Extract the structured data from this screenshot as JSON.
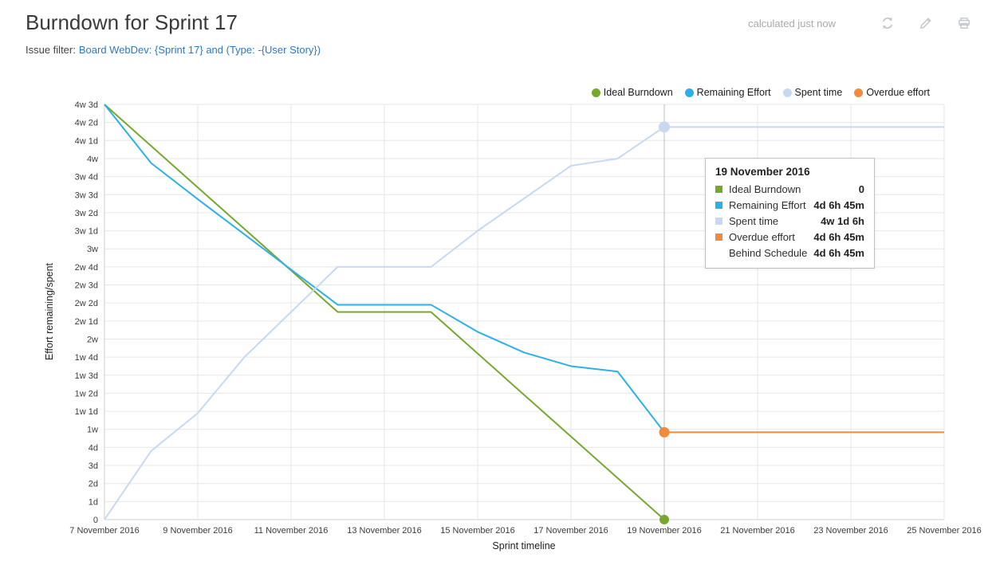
{
  "header": {
    "title": "Burndown for Sprint 17",
    "filter_label": "Issue filter:",
    "filter_value": "Board WebDev: {Sprint 17} and (Type: -{User Story})",
    "calculated": "calculated just now",
    "icons": [
      "refresh-icon",
      "edit-icon",
      "print-icon"
    ]
  },
  "axes": {
    "y_label": "Effort remaining/spent",
    "x_label": "Sprint timeline"
  },
  "legend": [
    {
      "label": "Ideal Burndown",
      "color": "#77a82e"
    },
    {
      "label": "Remaining Effort",
      "color": "#2bb1e8"
    },
    {
      "label": "Spent time",
      "color": "#c6d9f1"
    },
    {
      "label": "Overdue effort",
      "color": "#f08a3d"
    }
  ],
  "chart_data": {
    "type": "line",
    "x": [
      "7 November 2016",
      "8 November 2016",
      "9 November 2016",
      "10 November 2016",
      "11 November 2016",
      "12 November 2016",
      "13 November 2016",
      "14 November 2016",
      "15 November 2016",
      "16 November 2016",
      "17 November 2016",
      "18 November 2016",
      "19 November 2016",
      "20 November 2016",
      "21 November 2016",
      "22 November 2016",
      "23 November 2016",
      "24 November 2016",
      "25 November 2016"
    ],
    "x_tick_every": 2,
    "xlabel": "Sprint timeline",
    "ylabel": "Effort remaining/spent",
    "y_unit": "days",
    "y_max": 23,
    "y_tick_labels": [
      "0",
      "1d",
      "2d",
      "3d",
      "4d",
      "1w",
      "1w 1d",
      "1w 2d",
      "1w 3d",
      "1w 4d",
      "2w",
      "2w 1d",
      "2w 2d",
      "2w 3d",
      "2w 4d",
      "3w",
      "3w 1d",
      "3w 2d",
      "3w 3d",
      "3w 4d",
      "4w",
      "4w 1d",
      "4w 2d",
      "4w 3d"
    ],
    "grid": true,
    "legend_position": "top-right",
    "series": [
      {
        "name": "Ideal Burndown",
        "color": "#77a82e",
        "start_index": 0,
        "values": [
          23,
          20.7,
          18.4,
          16.1,
          13.8,
          11.5,
          11.5,
          11.5,
          9.2,
          6.9,
          4.6,
          2.3,
          0
        ]
      },
      {
        "name": "Remaining Effort",
        "color": "#2bb1e8",
        "start_index": 0,
        "values": [
          23,
          19.75,
          17.75,
          15.8,
          13.85,
          11.9,
          11.9,
          11.9,
          10.4,
          9.25,
          8.5,
          8.2,
          4.84
        ]
      },
      {
        "name": "Spent time",
        "color": "#c6d9f1",
        "start_index": 0,
        "values": [
          0,
          3.8,
          5.9,
          9,
          11.5,
          14,
          14,
          14,
          16,
          17.8,
          19.6,
          20,
          21.75,
          21.75,
          21.75,
          21.75,
          21.75,
          21.75,
          21.75
        ]
      },
      {
        "name": "Overdue effort",
        "color": "#f08a3d",
        "start_index": 12,
        "values": [
          4.84,
          4.84,
          4.84,
          4.84,
          4.84,
          4.84,
          4.84
        ]
      }
    ],
    "hover": {
      "index": 12,
      "date": "19 November 2016",
      "markers": [
        {
          "series": "Remaining Effort",
          "value": 4.84,
          "r": 5.5,
          "color": "#2bb1e8"
        },
        {
          "series": "Ideal Burndown",
          "value": 0,
          "r": 6,
          "color": "#77a82e"
        },
        {
          "series": "Spent time",
          "value": 21.75,
          "r": 7,
          "color": "#c6d9f1"
        },
        {
          "series": "Overdue effort",
          "value": 4.84,
          "r": 6.5,
          "color": "#f08a3d"
        }
      ]
    }
  },
  "tooltip": {
    "date": "19 November 2016",
    "rows": [
      {
        "label": "Ideal Burndown",
        "value": "0",
        "color": "#77a82e"
      },
      {
        "label": "Remaining Effort",
        "value": "4d 6h 45m",
        "color": "#2bb1e8"
      },
      {
        "label": "Spent time",
        "value": "4w 1d 6h",
        "color": "#c6d9f1"
      },
      {
        "label": "Overdue effort",
        "value": "4d 6h 45m",
        "color": "#f08a3d"
      },
      {
        "label": "Behind Schedule",
        "value": "4d 6h 45m",
        "color": null
      }
    ]
  }
}
